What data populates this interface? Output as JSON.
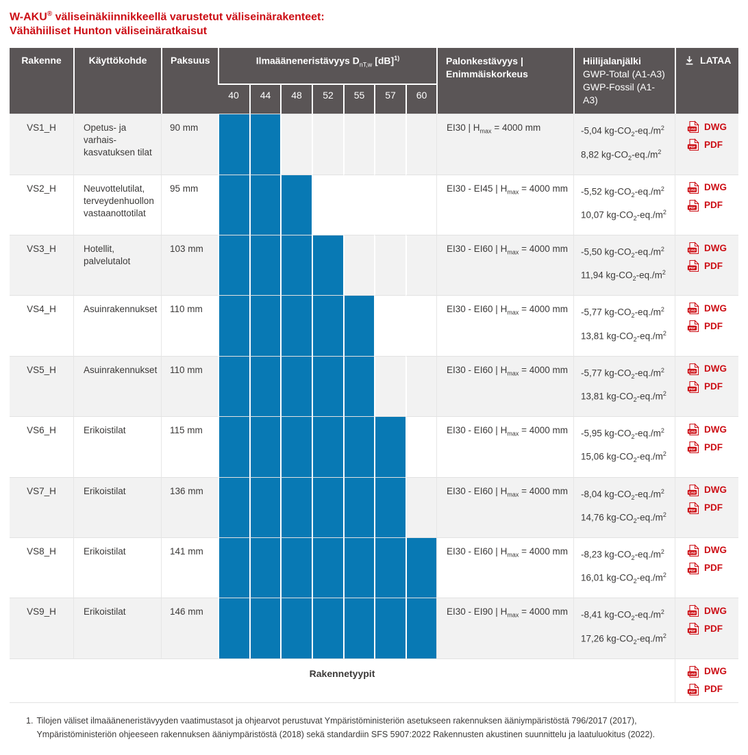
{
  "page": {
    "title_brand": "W-AKU",
    "title_reg_mark": "®",
    "title_line1_rest": " väliseinäkiinnikkeellä varustetut väliseinärakenteet:",
    "title_line2": "Vähähiiliset Hunton väliseinäratkaisut"
  },
  "colors": {
    "accent_red": "#cc0e15",
    "header_gray": "#5a5556",
    "bar_blue": "#0879b4",
    "row_alt_gray": "#f2f2f2"
  },
  "table": {
    "headers": {
      "rakenne": "Rakenne",
      "kayttokohde": "Käyttökohde",
      "paksuus": "Paksuus",
      "db_title": "Ilmaääneneristävyys",
      "db_symbol": "D",
      "db_symbol_sub": "nT,w",
      "db_unit": "[dB]",
      "db_footnote_ref": "1)",
      "db_levels": [
        "40",
        "44",
        "48",
        "52",
        "55",
        "57",
        "60"
      ],
      "fire_line1": "Palonkestävyys |",
      "fire_line2": "Enimmäiskorkeus",
      "carbon_title": "Hiilijalanjälki",
      "carbon_sub1": "GWP-Total (A1-A3)",
      "carbon_sub2": "GWP-Fossil (A1-A3)",
      "download": "LATAA"
    },
    "units": {
      "pipe": "|",
      "h_label": "H",
      "h_sub": "max",
      "equals": "=",
      "gwp_unit_prefix": "kg-CO",
      "gwp_unit_sub": "2",
      "gwp_unit_mid": "-eq./m",
      "gwp_unit_sup": "2"
    },
    "download_links": {
      "dwg": "DWG",
      "pdf": "PDF",
      "dwg_icon_label": "CAD",
      "pdf_icon_label": "PDF"
    },
    "rows": [
      {
        "id": "VS1_H",
        "use": [
          "Opetus- ja varhais-",
          "kasvatuksen tilat"
        ],
        "thickness": "90 mm",
        "db_filled": 2,
        "fire_class": "EI30",
        "hmax": "4000 mm",
        "gwp_total": "-5,04",
        "gwp_fossil": "8,82"
      },
      {
        "id": "VS2_H",
        "use": [
          "Neuvottelutilat,",
          "terveydenhuollon",
          "vastaanottotilat"
        ],
        "thickness": "95 mm",
        "db_filled": 3,
        "fire_class": "EI30 - EI45",
        "hmax": "4000 mm",
        "gwp_total": "-5,52",
        "gwp_fossil": "10,07"
      },
      {
        "id": "VS3_H",
        "use": [
          "Hotellit,",
          "palvelutalot"
        ],
        "thickness": "103 mm",
        "db_filled": 4,
        "fire_class": "EI30 - EI60",
        "hmax": "4000 mm",
        "gwp_total": "-5,50",
        "gwp_fossil": "11,94"
      },
      {
        "id": "VS4_H",
        "use": [
          "Asuinrakennukset"
        ],
        "thickness": "110 mm",
        "db_filled": 5,
        "fire_class": "EI30 - EI60",
        "hmax": "4000 mm",
        "gwp_total": "-5,77",
        "gwp_fossil": "13,81"
      },
      {
        "id": "VS5_H",
        "use": [
          "Asuinrakennukset"
        ],
        "thickness": "110 mm",
        "db_filled": 5,
        "fire_class": "EI30 - EI60",
        "hmax": "4000 mm",
        "gwp_total": "-5,77",
        "gwp_fossil": "13,81"
      },
      {
        "id": "VS6_H",
        "use": [
          "Erikoistilat"
        ],
        "thickness": "115 mm",
        "db_filled": 6,
        "fire_class": "EI30 - EI60",
        "hmax": "4000 mm",
        "gwp_total": "-5,95",
        "gwp_fossil": "15,06"
      },
      {
        "id": "VS7_H",
        "use": [
          "Erikoistilat"
        ],
        "thickness": "136 mm",
        "db_filled": 6,
        "fire_class": "EI30 - EI60",
        "hmax": "4000 mm",
        "gwp_total": "-8,04",
        "gwp_fossil": "14,76"
      },
      {
        "id": "VS8_H",
        "use": [
          "Erikoistilat"
        ],
        "thickness": "141 mm",
        "db_filled": 7,
        "fire_class": "EI30 - EI60",
        "hmax": "4000 mm",
        "gwp_total": "-8,23",
        "gwp_fossil": "16,01"
      },
      {
        "id": "VS9_H",
        "use": [
          "Erikoistilat"
        ],
        "thickness": "146 mm",
        "db_filled": 7,
        "fire_class": "EI30 - EI90",
        "hmax": "4000 mm",
        "gwp_total": "-8,41",
        "gwp_fossil": "17,26"
      }
    ],
    "footer_row": {
      "label": "Rakennetyypit"
    }
  },
  "footnote": {
    "number": "1.",
    "line1": "Tilojen väliset ilmaääneneristävyyden vaatimustasot ja ohjearvot perustuvat Ympäristöministeriön asetukseen rakennuksen ääniympäristöstä 796/2017 (2017),",
    "line2": "Ympäristöministeriön ohjeeseen rakennuksen ääniympäristöstä (2018) sekä standardiin SFS 5907:2022 Rakennusten akustinen suunnittelu ja laatuluokitus (2022)."
  }
}
